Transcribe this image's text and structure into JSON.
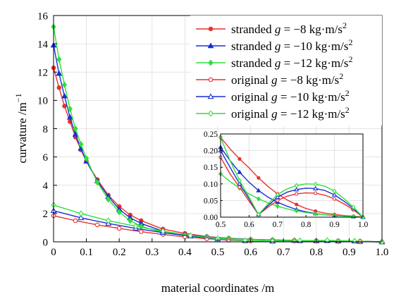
{
  "chart_data": [
    {
      "type": "line",
      "xlabel": "material coordinates /m",
      "ylabel": "curvature /m",
      "ylabel_sup": "−1",
      "xlim": [
        0,
        1.0
      ],
      "ylim": [
        0,
        16
      ],
      "xticks": [
        "0",
        "0.1",
        "0.2",
        "0.3",
        "0.4",
        "0.5",
        "0.6",
        "0.7",
        "0.8",
        "0.9",
        "1.0"
      ],
      "yticks": [
        "0",
        "2",
        "4",
        "6",
        "8",
        "10",
        "12",
        "14",
        "16"
      ],
      "grid": true,
      "legend_position": "top-right",
      "series": [
        {
          "name": "stranded g = −8 kg·m/s²",
          "legend_prefix": "stranded ",
          "legend_g": "g",
          "legend_value": " = −8 kg·m/s",
          "legend_sup": "2",
          "color": "#e8312f",
          "marker": "filled-circle",
          "x": [
            0,
            0.0167,
            0.0333,
            0.05,
            0.0667,
            0.0833,
            0.1,
            0.1333,
            0.1667,
            0.2,
            0.2333,
            0.2667,
            0.3333,
            0.4,
            0.4667,
            0.5333,
            0.6,
            0.6667,
            0.7333,
            0.8,
            0.8667,
            0.9333,
            1.0
          ],
          "y": [
            12.3,
            10.9,
            9.6,
            8.5,
            7.4,
            6.5,
            5.7,
            4.4,
            3.3,
            2.5,
            1.9,
            1.5,
            0.9,
            0.6,
            0.37,
            0.25,
            0.18,
            0.14,
            0.1,
            0.07,
            0.05,
            0.02,
            0.0
          ]
        },
        {
          "name": "stranded g = −10 kg·m/s²",
          "legend_prefix": "stranded ",
          "legend_g": "g",
          "legend_value": " = −10 kg·m/s",
          "legend_sup": "2",
          "color": "#1a2fd6",
          "marker": "filled-triangle",
          "x": [
            0,
            0.0167,
            0.0333,
            0.05,
            0.0667,
            0.0833,
            0.1,
            0.1333,
            0.1667,
            0.2,
            0.2333,
            0.2667,
            0.3333,
            0.4,
            0.4667,
            0.5333,
            0.6,
            0.6667,
            0.7333,
            0.8,
            0.8667,
            0.9333,
            1.0
          ],
          "y": [
            13.9,
            11.9,
            10.3,
            8.8,
            7.6,
            6.6,
            5.7,
            4.3,
            3.2,
            2.3,
            1.7,
            1.3,
            0.75,
            0.5,
            0.35,
            0.24,
            0.17,
            0.13,
            0.1,
            0.07,
            0.05,
            0.02,
            0.0
          ]
        },
        {
          "name": "stranded g = −12 kg·m/s²",
          "legend_prefix": "stranded ",
          "legend_g": "g",
          "legend_value": " = −12 kg·m/s",
          "legend_sup": "2",
          "color": "#2ee03a",
          "marker": "filled-diamond",
          "x": [
            0,
            0.0167,
            0.0333,
            0.05,
            0.0667,
            0.0833,
            0.1,
            0.1333,
            0.1667,
            0.2,
            0.2333,
            0.2667,
            0.3333,
            0.4,
            0.4667,
            0.5333,
            0.6,
            0.6667,
            0.7333,
            0.8,
            0.8667,
            0.9333,
            1.0
          ],
          "y": [
            15.2,
            12.9,
            11.1,
            9.4,
            8.0,
            6.9,
            5.9,
            4.2,
            3.0,
            2.1,
            1.5,
            1.1,
            0.65,
            0.45,
            0.32,
            0.22,
            0.16,
            0.12,
            0.09,
            0.07,
            0.05,
            0.02,
            0.0
          ]
        },
        {
          "name": "original g = −8 kg·m/s²",
          "legend_prefix": "original ",
          "legend_g": "g",
          "legend_value": " = −8 kg·m/s",
          "legend_sup": "2",
          "color": "#e8312f",
          "marker": "open-circle",
          "x": [
            0,
            0.0667,
            0.1333,
            0.2,
            0.2667,
            0.3333,
            0.4,
            0.4667,
            0.5333,
            0.6,
            0.6667,
            0.7333,
            0.8,
            0.8667,
            0.9333,
            1.0
          ],
          "y": [
            1.85,
            1.5,
            1.2,
            0.95,
            0.72,
            0.52,
            0.35,
            0.22,
            0.12,
            0.06,
            0.04,
            0.06,
            0.07,
            0.06,
            0.04,
            0.0
          ]
        },
        {
          "name": "original g = −10 kg·m/s²",
          "legend_prefix": "original ",
          "legend_g": "g",
          "legend_value": " = −10 kg·m/s",
          "legend_sup": "2",
          "color": "#1a2fd6",
          "marker": "open-triangle",
          "x": [
            0,
            0.0833,
            0.1667,
            0.25,
            0.3333,
            0.4167,
            0.5,
            0.5833,
            0.6667,
            0.75,
            0.8333,
            0.9167,
            1.0
          ],
          "y": [
            2.2,
            1.7,
            1.3,
            0.95,
            0.65,
            0.4,
            0.2,
            0.08,
            0.04,
            0.07,
            0.08,
            0.05,
            0.0
          ]
        },
        {
          "name": "original g = −12 kg·m/s²",
          "legend_prefix": "original ",
          "legend_g": "g",
          "legend_value": " = −12 kg·m/s",
          "legend_sup": "2",
          "color": "#2ee03a",
          "marker": "open-diamond",
          "x": [
            0,
            0.0833,
            0.1667,
            0.25,
            0.3333,
            0.4167,
            0.5,
            0.5833,
            0.6667,
            0.75,
            0.8333,
            0.9167,
            1.0
          ],
          "y": [
            2.6,
            2.0,
            1.5,
            1.1,
            0.75,
            0.45,
            0.22,
            0.08,
            0.04,
            0.08,
            0.1,
            0.06,
            0.0
          ]
        }
      ]
    },
    {
      "type": "line",
      "xlim": [
        0.5,
        1.0
      ],
      "ylim": [
        0,
        0.25
      ],
      "xticks": [
        "0.5",
        "0.6",
        "0.7",
        "0.8",
        "0.9",
        "1.0"
      ],
      "yticks": [
        "0.00",
        "0.05",
        "0.10",
        "0.15",
        "0.20",
        "0.25"
      ],
      "grid": true,
      "series": [
        {
          "name": "stranded g = −8 kg·m/s²",
          "color": "#e8312f",
          "marker": "filled-circle",
          "x": [
            0.5,
            0.5333,
            0.5667,
            0.6,
            0.6333,
            0.6667,
            0.7,
            0.7333,
            0.7667,
            0.8,
            0.8333,
            0.8667,
            0.9,
            0.9333,
            0.9667,
            1.0
          ],
          "y": [
            0.24,
            0.205,
            0.175,
            0.148,
            0.118,
            0.092,
            0.07,
            0.052,
            0.038,
            0.026,
            0.018,
            0.012,
            0.008,
            0.005,
            0.003,
            0.0
          ]
        },
        {
          "name": "stranded g = −10 kg·m/s²",
          "color": "#1a2fd6",
          "marker": "filled-triangle",
          "x": [
            0.5,
            0.5333,
            0.5667,
            0.6,
            0.6333,
            0.6667,
            0.7,
            0.7333,
            0.7667,
            0.8,
            0.8333,
            0.8667,
            0.9,
            0.9333,
            0.9667,
            1.0
          ],
          "y": [
            0.21,
            0.17,
            0.135,
            0.105,
            0.08,
            0.06,
            0.045,
            0.033,
            0.023,
            0.016,
            0.011,
            0.007,
            0.005,
            0.003,
            0.002,
            0.0
          ]
        },
        {
          "name": "stranded g = −12 kg·m/s²",
          "color": "#2ee03a",
          "marker": "filled-diamond",
          "x": [
            0.5,
            0.5333,
            0.5667,
            0.6,
            0.6333,
            0.6667,
            0.7,
            0.7333,
            0.7667,
            0.8,
            0.8333,
            0.8667,
            0.9,
            0.9333,
            0.9667,
            1.0
          ],
          "y": [
            0.13,
            0.107,
            0.087,
            0.07,
            0.055,
            0.043,
            0.033,
            0.025,
            0.019,
            0.014,
            0.01,
            0.007,
            0.005,
            0.003,
            0.002,
            0.0
          ]
        },
        {
          "name": "original g = −8 kg·m/s²",
          "color": "#e8312f",
          "marker": "open-circle",
          "x": [
            0.5,
            0.5333,
            0.5667,
            0.6,
            0.6333,
            0.6667,
            0.7,
            0.7333,
            0.7667,
            0.8,
            0.8333,
            0.8667,
            0.9,
            0.9333,
            0.9667,
            1.0
          ],
          "y": [
            0.18,
            0.13,
            0.09,
            0.048,
            0.008,
            0.03,
            0.05,
            0.063,
            0.07,
            0.073,
            0.072,
            0.066,
            0.055,
            0.04,
            0.022,
            0.0
          ]
        },
        {
          "name": "original g = −10 kg·m/s²",
          "color": "#1a2fd6",
          "marker": "open-triangle",
          "x": [
            0.5,
            0.5333,
            0.5667,
            0.6,
            0.6333,
            0.6667,
            0.7,
            0.7333,
            0.7667,
            0.8,
            0.8333,
            0.8667,
            0.9,
            0.9333,
            0.9667,
            1.0
          ],
          "y": [
            0.2,
            0.15,
            0.1,
            0.055,
            0.008,
            0.035,
            0.06,
            0.075,
            0.083,
            0.087,
            0.086,
            0.08,
            0.067,
            0.048,
            0.026,
            0.0
          ]
        },
        {
          "name": "original g = −12 kg·m/s²",
          "color": "#2ee03a",
          "marker": "open-diamond",
          "x": [
            0.5,
            0.5333,
            0.5667,
            0.6,
            0.6333,
            0.6667,
            0.7,
            0.7333,
            0.7667,
            0.8,
            0.8333,
            0.8667,
            0.9,
            0.9333,
            0.9667,
            1.0
          ],
          "y": [
            0.24,
            0.17,
            0.11,
            0.06,
            0.008,
            0.04,
            0.068,
            0.085,
            0.095,
            0.1,
            0.099,
            0.093,
            0.078,
            0.056,
            0.03,
            0.0
          ]
        }
      ]
    }
  ]
}
